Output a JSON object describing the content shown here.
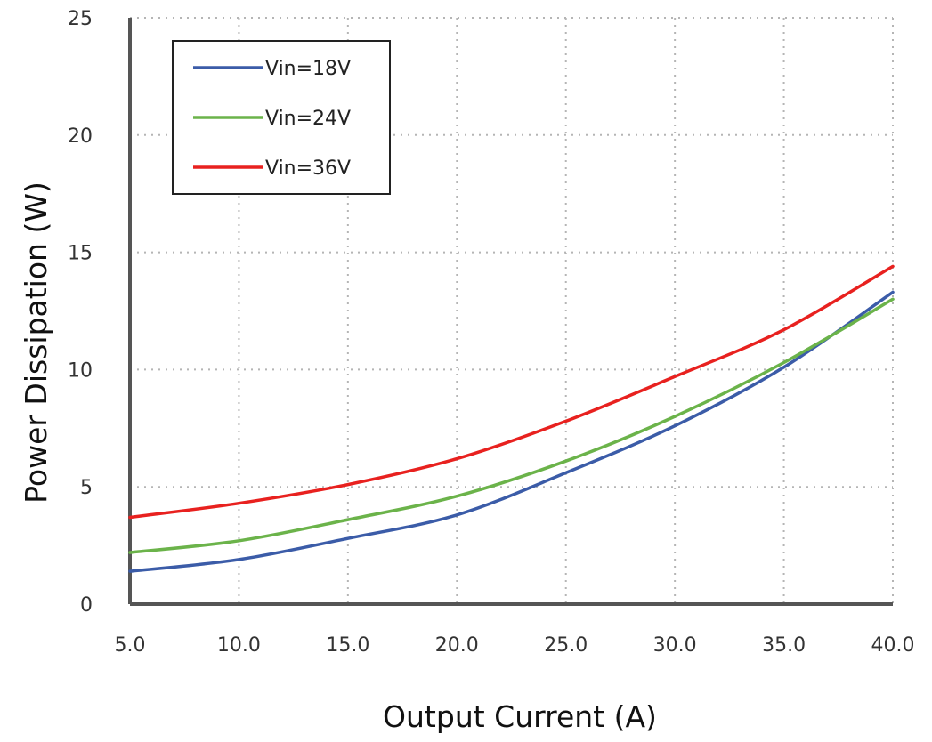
{
  "chart_data": {
    "type": "line",
    "title": "",
    "xlabel": "Output Current (A)",
    "ylabel": "Power Dissipation (W)",
    "xlim": [
      5,
      40
    ],
    "ylim": [
      0,
      25
    ],
    "x_ticks": [
      "5.0",
      "10.0",
      "15.0",
      "20.0",
      "25.0",
      "30.0",
      "35.0",
      "40.0"
    ],
    "y_ticks": [
      "0",
      "5",
      "10",
      "15",
      "20",
      "25"
    ],
    "grid": true,
    "legend_position": "top-left",
    "x": [
      5,
      10,
      15,
      20,
      25,
      30,
      35,
      40
    ],
    "series": [
      {
        "name": "Vin=18V",
        "color": "#3b5ca8",
        "values": [
          1.4,
          1.9,
          2.8,
          3.8,
          5.6,
          7.6,
          10.1,
          13.3
        ]
      },
      {
        "name": "Vin=24V",
        "color": "#6bb34a",
        "values": [
          2.2,
          2.7,
          3.6,
          4.6,
          6.1,
          8.0,
          10.3,
          13.0
        ]
      },
      {
        "name": "Vin=36V",
        "color": "#e8211f",
        "values": [
          3.7,
          4.3,
          5.1,
          6.2,
          7.8,
          9.7,
          11.7,
          14.4
        ]
      }
    ]
  }
}
